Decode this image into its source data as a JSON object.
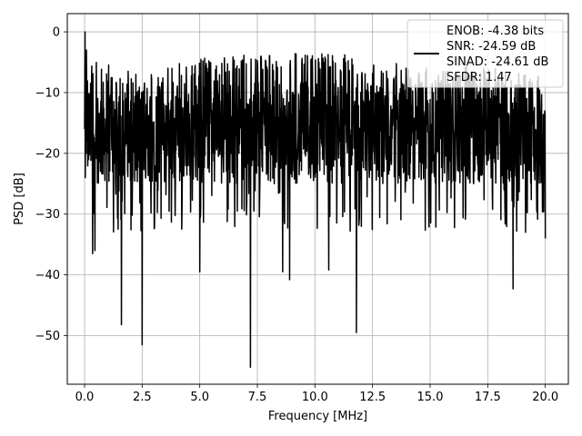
{
  "chart_data": {
    "type": "line",
    "title": "",
    "xlabel": "Frequency [MHz]",
    "ylabel": "PSD [dB]",
    "xlim": [
      -0.75,
      21.0
    ],
    "ylim": [
      -58,
      3
    ],
    "xticks": [
      0.0,
      2.5,
      5.0,
      7.5,
      10.0,
      12.5,
      15.0,
      17.5,
      20.0
    ],
    "xtick_labels": [
      "0.0",
      "2.5",
      "5.0",
      "7.5",
      "10.0",
      "12.5",
      "15.0",
      "17.5",
      "20.0"
    ],
    "yticks": [
      0,
      -10,
      -20,
      -30,
      -40,
      -50
    ],
    "ytick_labels": [
      "0",
      "−10",
      "−20",
      "−30",
      "−40",
      "−50"
    ],
    "grid": true,
    "legend_position": "top-right",
    "series": [
      {
        "color": "#000000",
        "x_range": [
          0.0,
          20.0
        ],
        "nominal_mean": -16.5,
        "nominal_spread": 8.5,
        "envelope_top": [
          [
            0.0,
            -6
          ],
          [
            3.0,
            -8
          ],
          [
            4.5,
            -6
          ],
          [
            8.0,
            -5
          ],
          [
            11.0,
            -5
          ],
          [
            14.0,
            -7
          ],
          [
            17.0,
            -7
          ],
          [
            20.0,
            -9
          ]
        ],
        "initial_points": [
          [
            0.0,
            -16
          ],
          [
            0.02,
            0
          ],
          [
            0.03,
            -24
          ],
          [
            0.05,
            -10
          ],
          [
            0.07,
            -20
          ],
          [
            0.08,
            -3
          ],
          [
            0.1,
            -18
          ]
        ],
        "notable_minima": [
          [
            0.35,
            -36.5
          ],
          [
            0.45,
            -36.0
          ],
          [
            1.6,
            -48.2
          ],
          [
            2.5,
            -51.5
          ],
          [
            5.0,
            -39.5
          ],
          [
            7.2,
            -55.2
          ],
          [
            8.6,
            -39.5
          ],
          [
            8.9,
            -40.8
          ],
          [
            10.6,
            -39.2
          ],
          [
            11.8,
            -49.5
          ],
          [
            18.6,
            -42.3
          ],
          [
            20.0,
            -34.0
          ]
        ]
      }
    ],
    "legend_lines": [
      "ENOB: -4.38 bits",
      "SNR: -24.59 dB",
      "SINAD: -24.61 dB",
      "SFDR: 1.47"
    ]
  }
}
